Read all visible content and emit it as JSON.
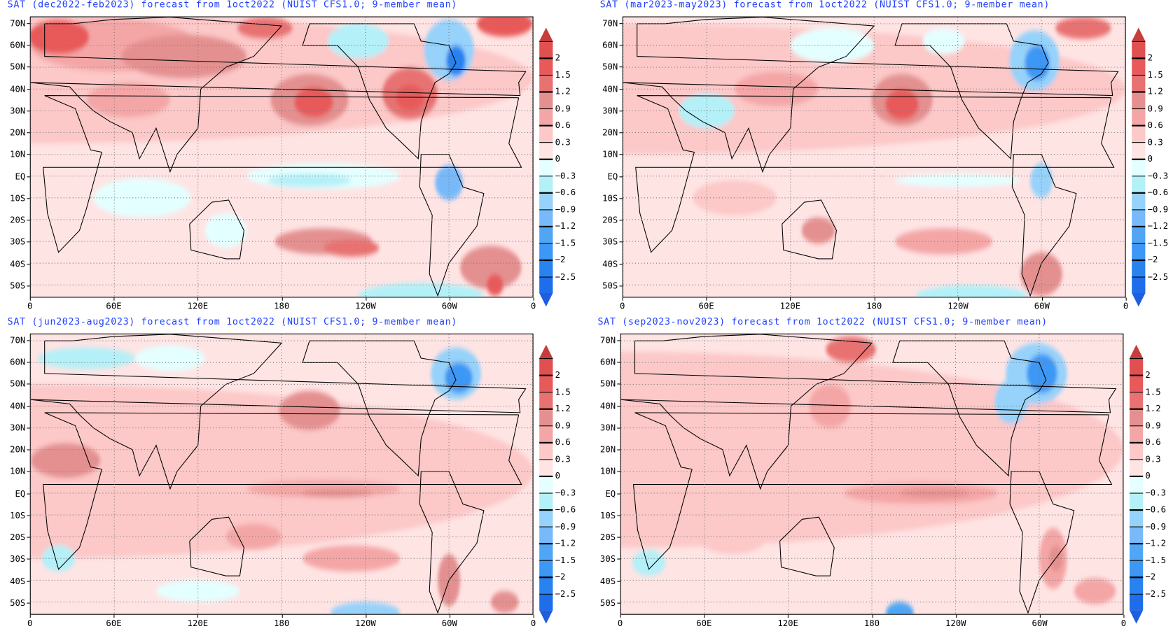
{
  "panels": [
    {
      "title": "SAT (dec2022-feb2023) forecast from 1oct2022 (NUIST CFS1.0; 9-member mean)",
      "season": "dec2022-feb2023"
    },
    {
      "title": "SAT (mar2023-may2023) forecast from 1oct2022 (NUIST CFS1.0; 9-member mean)",
      "season": "mar2023-may2023"
    },
    {
      "title": "SAT (jun2023-aug2023) forecast from 1oct2022 (NUIST CFS1.0; 9-member mean)",
      "season": "jun2023-aug2023"
    },
    {
      "title": "SAT (sep2023-nov2023) forecast from 1oct2022 (NUIST CFS1.0; 9-member mean)",
      "season": "sep2023-nov2023"
    }
  ],
  "lat_labels": [
    "70N",
    "60N",
    "50N",
    "40N",
    "30N",
    "20N",
    "10N",
    "EQ",
    "10S",
    "20S",
    "30S",
    "40S",
    "50S"
  ],
  "lat_values": [
    70,
    60,
    50,
    40,
    30,
    20,
    10,
    0,
    -10,
    -20,
    -30,
    -40,
    -50
  ],
  "lon_labels": [
    "0",
    "60E",
    "120E",
    "180",
    "120W",
    "60W",
    "0"
  ],
  "lon_values": [
    0,
    60,
    120,
    180,
    240,
    300,
    360
  ],
  "colorbar": {
    "labels": [
      "2",
      "1.5",
      "1.2",
      "0.9",
      "0.6",
      "0.3",
      "0",
      "−0.3",
      "−0.6",
      "−0.9",
      "−1.2",
      "−1.5",
      "−2",
      "−2.5"
    ],
    "colors": [
      "#e05050",
      "#e85a5a",
      "#e87272",
      "#e49090",
      "#f4a6a6",
      "#fcc8c8",
      "#ffe4e4",
      "#e4ffff",
      "#b4f0f8",
      "#96d2fa",
      "#78b9fa",
      "#50a5f5",
      "#3c97f5",
      "#2882f0",
      "#1e6eeb"
    ],
    "top_color": "#c83c3c",
    "bottom_color": "#1e5ee0"
  },
  "accent_title_color": "#2040ff"
}
